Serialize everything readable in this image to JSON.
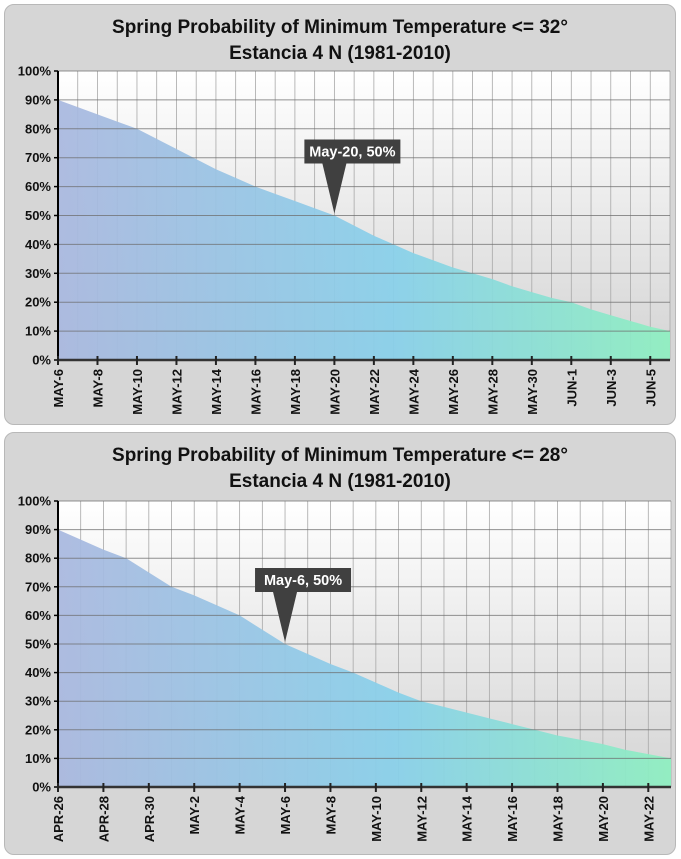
{
  "chart_data": [
    {
      "type": "area",
      "title": "Spring Probability of Minimum Temperature <= 32°",
      "subtitle": "Estancia 4 N (1981-2010)",
      "xlabel": "",
      "ylabel": "",
      "ylim": [
        0,
        100
      ],
      "yticks": [
        "0%",
        "10%",
        "20%",
        "30%",
        "40%",
        "50%",
        "60%",
        "70%",
        "80%",
        "90%",
        "100%"
      ],
      "x": [
        "MAY-6",
        "MAY-7",
        "MAY-8",
        "MAY-9",
        "MAY-10",
        "MAY-11",
        "MAY-12",
        "MAY-13",
        "MAY-14",
        "MAY-15",
        "MAY-16",
        "MAY-17",
        "MAY-18",
        "MAY-19",
        "MAY-20",
        "MAY-21",
        "MAY-22",
        "MAY-23",
        "MAY-24",
        "MAY-25",
        "MAY-26",
        "MAY-27",
        "MAY-28",
        "MAY-29",
        "MAY-30",
        "MAY-31",
        "JUN-1",
        "JUN-2",
        "JUN-3",
        "JUN-4",
        "JUN-5",
        "JUN-6"
      ],
      "tick_labels": [
        "MAY-6",
        "MAY-8",
        "MAY-10",
        "MAY-12",
        "MAY-14",
        "MAY-16",
        "MAY-18",
        "MAY-20",
        "MAY-22",
        "MAY-24",
        "MAY-26",
        "MAY-28",
        "MAY-30",
        "JUN-1",
        "JUN-3",
        "JUN-5"
      ],
      "values": [
        90,
        87.5,
        85,
        82.5,
        80,
        76.5,
        73,
        69.5,
        66,
        63,
        60,
        57.5,
        55,
        52.5,
        50,
        46.5,
        43,
        40,
        37,
        34.5,
        32,
        30,
        28,
        25.5,
        23.5,
        21.5,
        20,
        17.5,
        15.5,
        13.5,
        11.5,
        10
      ],
      "annotation": {
        "text": "May-20, 50%",
        "x": "MAY-20",
        "y": 50
      },
      "grid": true,
      "colors": {
        "fill_start": "#a9b8df",
        "fill_mid": "#88d0ea",
        "fill_end": "#8eefc0",
        "callout": "#404040"
      }
    },
    {
      "type": "area",
      "title": "Spring Probability of Minimum Temperature <= 28°",
      "subtitle": "Estancia 4 N (1981-2010)",
      "xlabel": "",
      "ylabel": "",
      "ylim": [
        0,
        100
      ],
      "yticks": [
        "0%",
        "10%",
        "20%",
        "30%",
        "40%",
        "50%",
        "60%",
        "70%",
        "80%",
        "90%",
        "100%"
      ],
      "x": [
        "APR-26",
        "APR-27",
        "APR-28",
        "APR-29",
        "APR-30",
        "MAY-1",
        "MAY-2",
        "MAY-3",
        "MAY-4",
        "MAY-5",
        "MAY-6",
        "MAY-7",
        "MAY-8",
        "MAY-9",
        "MAY-10",
        "MAY-11",
        "MAY-12",
        "MAY-13",
        "MAY-14",
        "MAY-15",
        "MAY-16",
        "MAY-17",
        "MAY-18",
        "MAY-19",
        "MAY-20",
        "MAY-21",
        "MAY-22",
        "MAY-23"
      ],
      "tick_labels": [
        "APR-26",
        "APR-28",
        "APR-30",
        "MAY-2",
        "MAY-4",
        "MAY-6",
        "MAY-8",
        "MAY-10",
        "MAY-12",
        "MAY-14",
        "MAY-16",
        "MAY-18",
        "MAY-20",
        "MAY-22"
      ],
      "values": [
        90,
        86.5,
        83,
        80,
        75,
        70,
        67,
        63.5,
        60,
        55,
        50,
        46.5,
        43,
        40,
        36.5,
        33,
        30,
        28,
        26,
        24,
        22,
        20,
        18,
        16.5,
        15,
        13,
        11.5,
        10
      ],
      "annotation": {
        "text": "May-6, 50%",
        "x": "MAY-6",
        "y": 50
      },
      "grid": true,
      "colors": {
        "fill_start": "#a9b8df",
        "fill_mid": "#88d0ea",
        "fill_end": "#8eefc0",
        "callout": "#404040"
      }
    }
  ]
}
